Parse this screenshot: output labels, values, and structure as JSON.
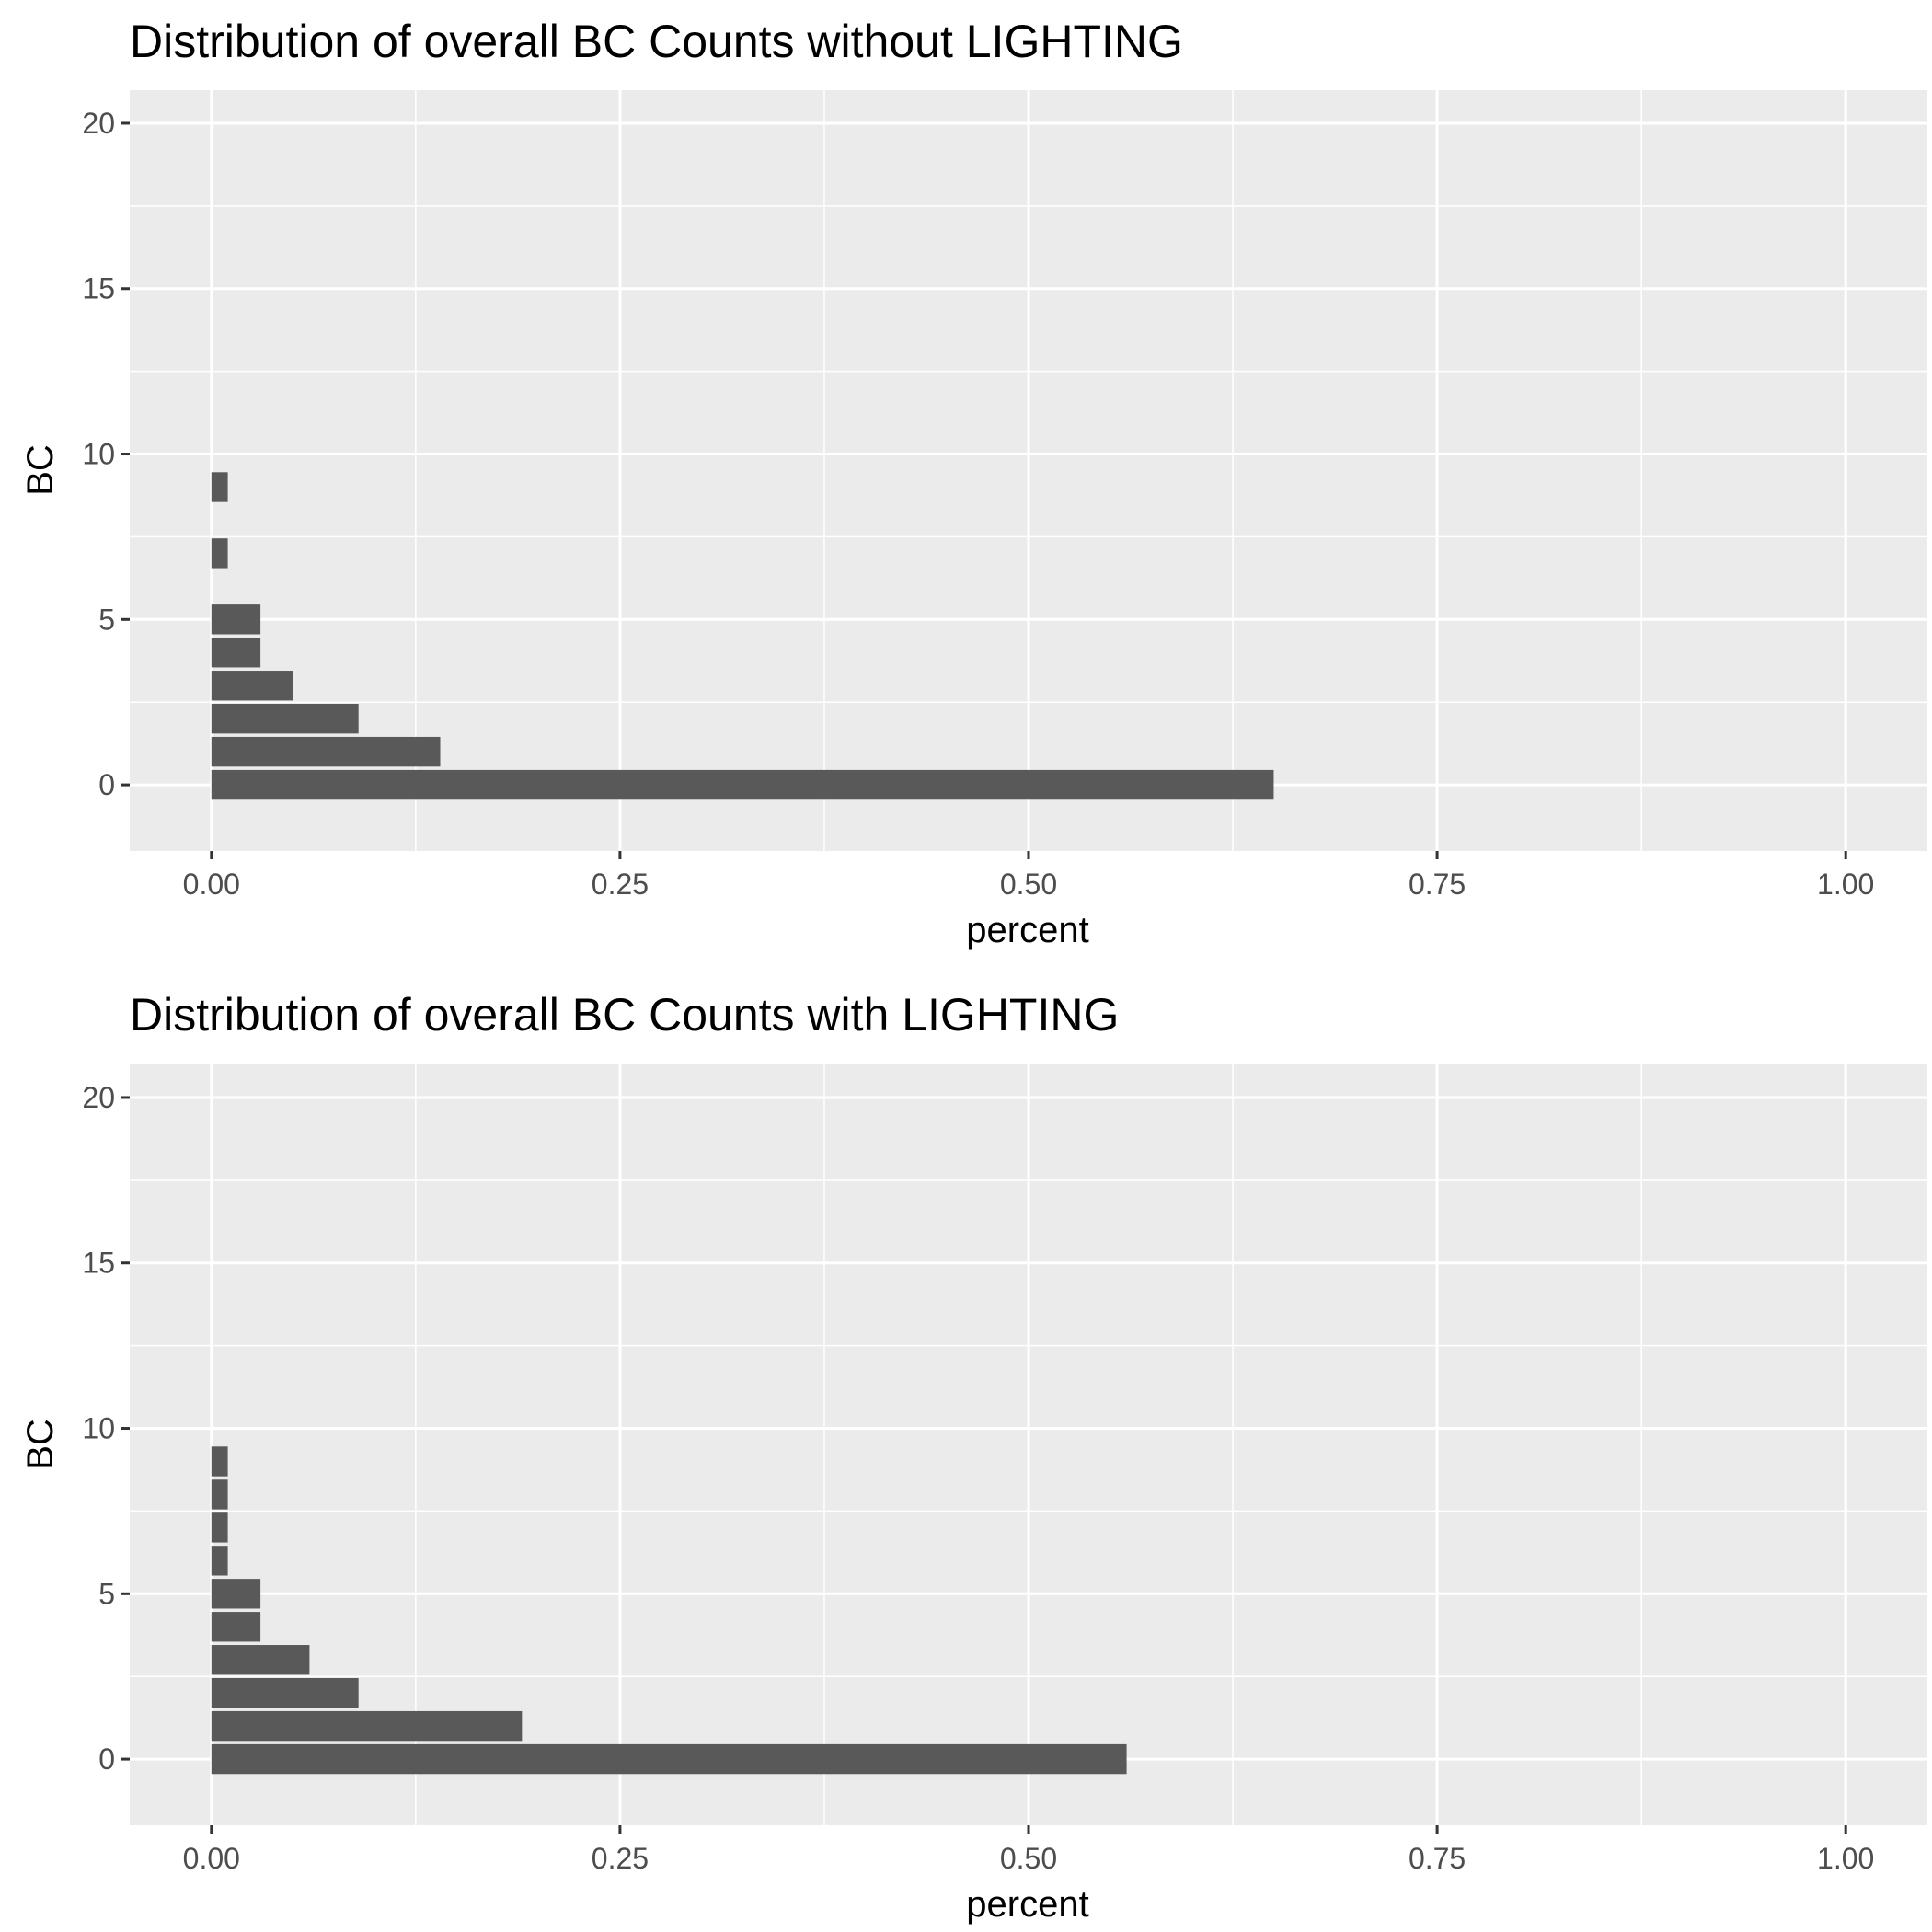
{
  "chart_data": [
    {
      "type": "bar",
      "orientation": "horizontal",
      "title": "Distribution of overall BC Counts without LIGHTING",
      "xlabel": "percent",
      "ylabel": "BC",
      "xlim": [
        -0.05,
        1.05
      ],
      "ylim": [
        -2,
        21
      ],
      "x_ticks": [
        0.0,
        0.25,
        0.5,
        0.75,
        1.0
      ],
      "x_tick_labels": [
        "0.00",
        "0.25",
        "0.50",
        "0.75",
        "1.00"
      ],
      "y_ticks": [
        0,
        5,
        10,
        15,
        20
      ],
      "y_tick_labels": [
        "0",
        "5",
        "10",
        "15",
        "20"
      ],
      "grid": true,
      "bar_color": "#595959",
      "panel_color": "#ebebeb",
      "categories": [
        0,
        1,
        2,
        3,
        4,
        5,
        7,
        9
      ],
      "values": [
        0.65,
        0.14,
        0.09,
        0.05,
        0.03,
        0.03,
        0.01,
        0.01
      ]
    },
    {
      "type": "bar",
      "orientation": "horizontal",
      "title": "Distribution of overall BC Counts with LIGHTING",
      "xlabel": "percent",
      "ylabel": "BC",
      "xlim": [
        -0.05,
        1.05
      ],
      "ylim": [
        -2,
        21
      ],
      "x_ticks": [
        0.0,
        0.25,
        0.5,
        0.75,
        1.0
      ],
      "x_tick_labels": [
        "0.00",
        "0.25",
        "0.50",
        "0.75",
        "1.00"
      ],
      "y_ticks": [
        0,
        5,
        10,
        15,
        20
      ],
      "y_tick_labels": [
        "0",
        "5",
        "10",
        "15",
        "20"
      ],
      "grid": true,
      "bar_color": "#595959",
      "panel_color": "#ebebeb",
      "categories": [
        0,
        1,
        2,
        3,
        4,
        5,
        6,
        7,
        8,
        9
      ],
      "values": [
        0.56,
        0.19,
        0.09,
        0.06,
        0.03,
        0.03,
        0.01,
        0.01,
        0.01,
        0.01
      ]
    }
  ]
}
